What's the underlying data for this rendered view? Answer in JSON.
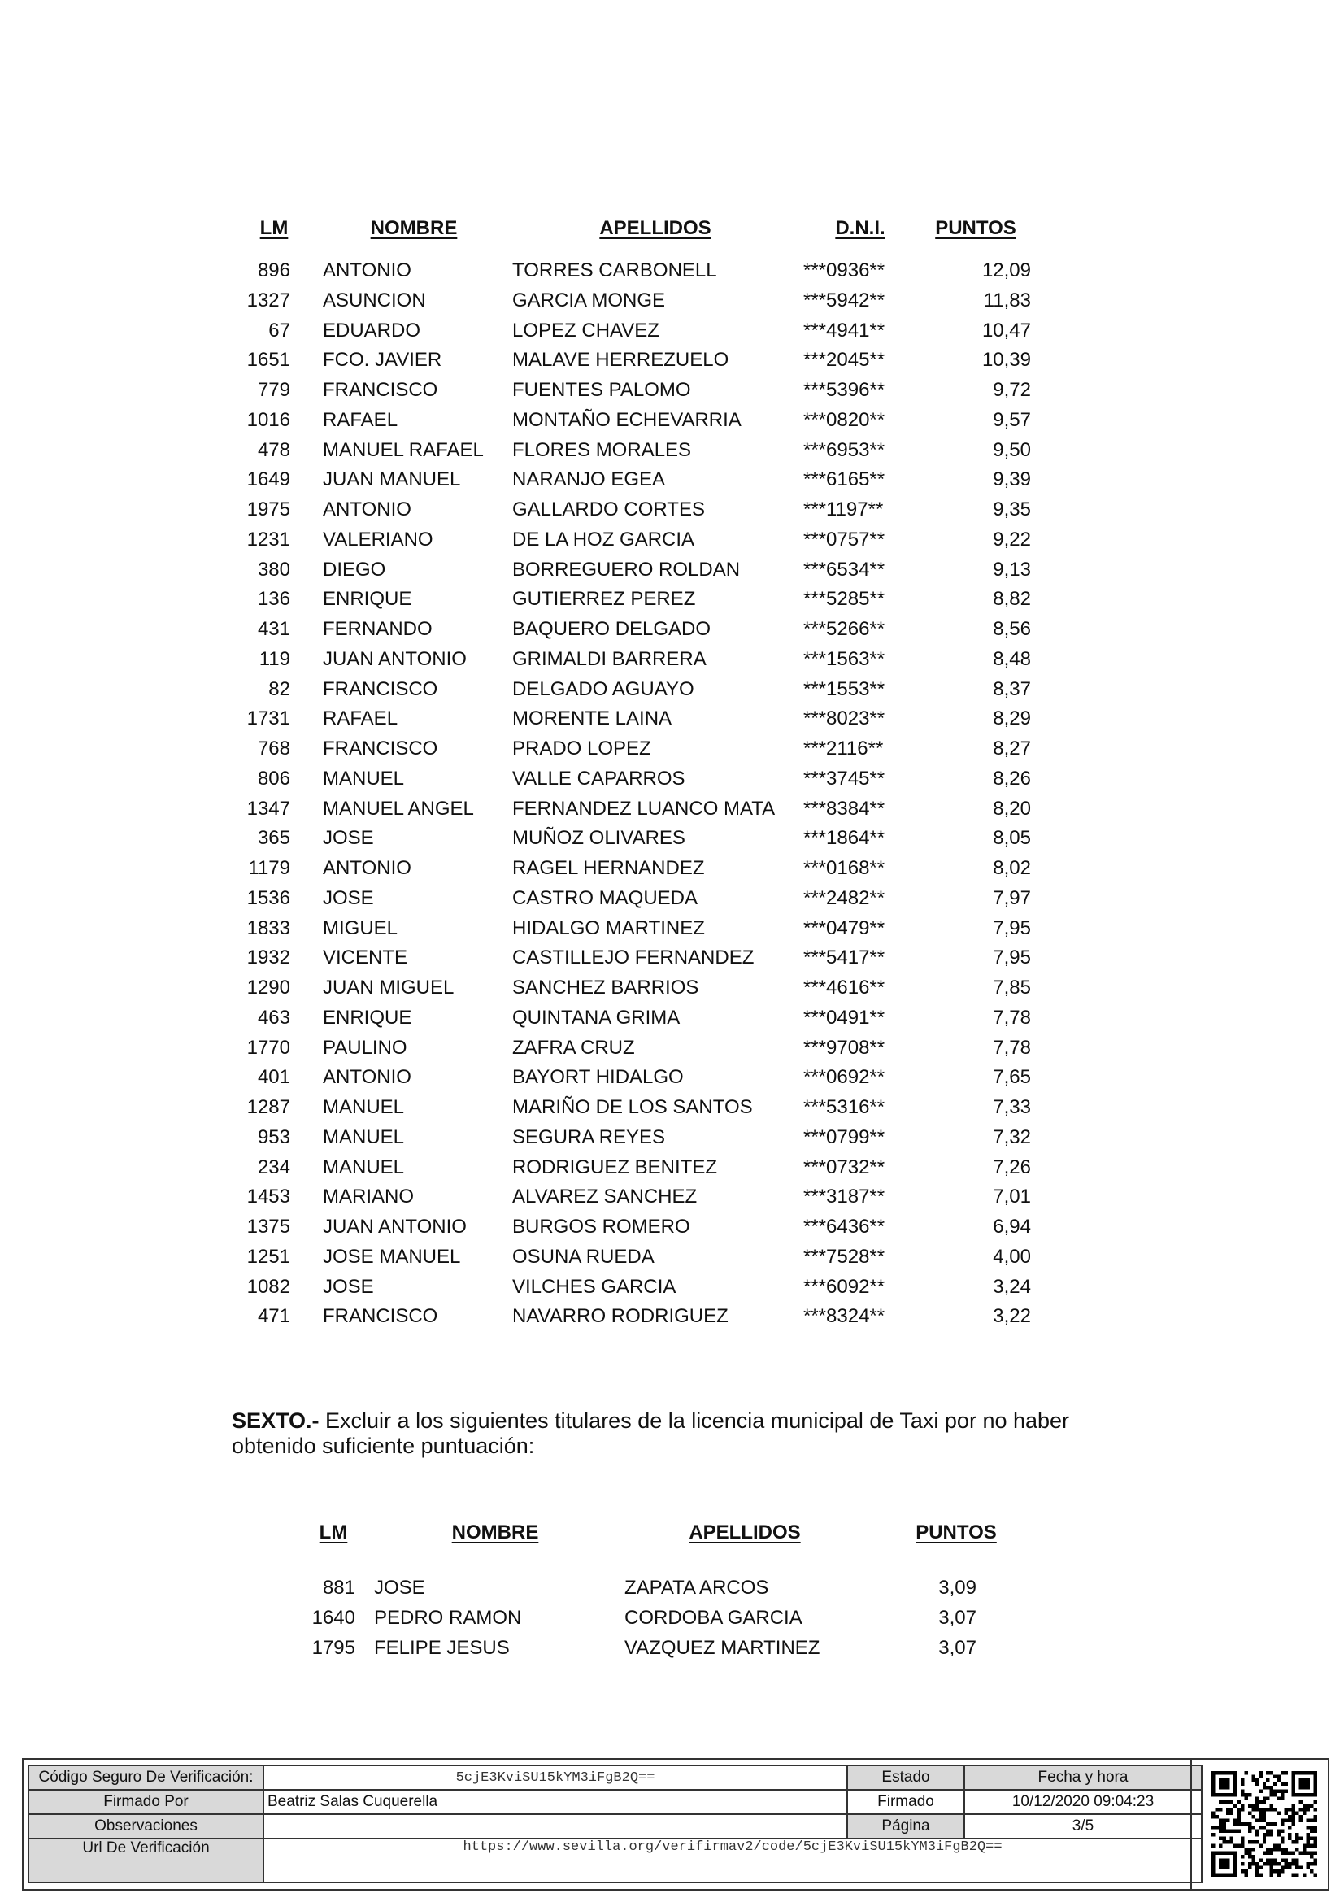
{
  "table1": {
    "headers": {
      "lm": "LM",
      "nombre": "NOMBRE",
      "apellidos": "APELLIDOS",
      "dni": "D.N.I.",
      "puntos": "PUNTOS"
    },
    "rows": [
      [
        "896",
        "ANTONIO",
        "TORRES CARBONELL",
        "***0936**",
        "12,09"
      ],
      [
        "1327",
        "ASUNCION",
        "GARCIA MONGE",
        "***5942**",
        "11,83"
      ],
      [
        "67",
        "EDUARDO",
        "LOPEZ CHAVEZ",
        "***4941**",
        "10,47"
      ],
      [
        "1651",
        "FCO. JAVIER",
        "MALAVE HERREZUELO",
        "***2045**",
        "10,39"
      ],
      [
        "779",
        "FRANCISCO",
        "FUENTES PALOMO",
        "***5396**",
        "9,72"
      ],
      [
        "1016",
        "RAFAEL",
        "MONTAÑO ECHEVARRIA",
        "***0820**",
        "9,57"
      ],
      [
        "478",
        "MANUEL RAFAEL",
        "FLORES MORALES",
        "***6953**",
        "9,50"
      ],
      [
        "1649",
        "JUAN MANUEL",
        "NARANJO EGEA",
        "***6165**",
        "9,39"
      ],
      [
        "1975",
        "ANTONIO",
        "GALLARDO CORTES",
        "***1197**",
        "9,35"
      ],
      [
        "1231",
        "VALERIANO",
        "DE LA HOZ GARCIA",
        "***0757**",
        "9,22"
      ],
      [
        "380",
        "DIEGO",
        "BORREGUERO ROLDAN",
        "***6534**",
        "9,13"
      ],
      [
        "136",
        "ENRIQUE",
        "GUTIERREZ PEREZ",
        "***5285**",
        "8,82"
      ],
      [
        "431",
        "FERNANDO",
        "BAQUERO DELGADO",
        "***5266**",
        "8,56"
      ],
      [
        "119",
        "JUAN ANTONIO",
        "GRIMALDI BARRERA",
        "***1563**",
        "8,48"
      ],
      [
        "82",
        "FRANCISCO",
        "DELGADO AGUAYO",
        "***1553**",
        "8,37"
      ],
      [
        "1731",
        "RAFAEL",
        "MORENTE LAINA",
        "***8023**",
        "8,29"
      ],
      [
        "768",
        "FRANCISCO",
        "PRADO LOPEZ",
        "***2116**",
        "8,27"
      ],
      [
        "806",
        "MANUEL",
        "VALLE CAPARROS",
        "***3745**",
        "8,26"
      ],
      [
        "1347",
        "MANUEL ANGEL",
        "FERNANDEZ LUANCO MATA",
        "***8384**",
        "8,20"
      ],
      [
        "365",
        "JOSE",
        "MUÑOZ OLIVARES",
        "***1864**",
        "8,05"
      ],
      [
        "1179",
        "ANTONIO",
        "RAGEL HERNANDEZ",
        "***0168**",
        "8,02"
      ],
      [
        "1536",
        "JOSE",
        "CASTRO MAQUEDA",
        "***2482**",
        "7,97"
      ],
      [
        "1833",
        "MIGUEL",
        "HIDALGO MARTINEZ",
        "***0479**",
        "7,95"
      ],
      [
        "1932",
        "VICENTE",
        "CASTILLEJO FERNANDEZ",
        "***5417**",
        "7,95"
      ],
      [
        "1290",
        "JUAN MIGUEL",
        "SANCHEZ BARRIOS",
        "***4616**",
        "7,85"
      ],
      [
        "463",
        "ENRIQUE",
        "QUINTANA GRIMA",
        "***0491**",
        "7,78"
      ],
      [
        "1770",
        "PAULINO",
        "ZAFRA CRUZ",
        "***9708**",
        "7,78"
      ],
      [
        "401",
        "ANTONIO",
        "BAYORT HIDALGO",
        "***0692**",
        "7,65"
      ],
      [
        "1287",
        "MANUEL",
        "MARIÑO DE LOS SANTOS",
        "***5316**",
        "7,33"
      ],
      [
        "953",
        "MANUEL",
        "SEGURA REYES",
        "***0799**",
        "7,32"
      ],
      [
        "234",
        "MANUEL",
        "RODRIGUEZ BENITEZ",
        "***0732**",
        "7,26"
      ],
      [
        "1453",
        "MARIANO",
        "ALVAREZ SANCHEZ",
        "***3187**",
        "7,01"
      ],
      [
        "1375",
        "JUAN ANTONIO",
        "BURGOS ROMERO",
        "***6436**",
        "6,94"
      ],
      [
        "1251",
        "JOSE MANUEL",
        "OSUNA RUEDA",
        "***7528**",
        "4,00"
      ],
      [
        "1082",
        "JOSE",
        "VILCHES GARCIA",
        "***6092**",
        "3,24"
      ],
      [
        "471",
        "FRANCISCO",
        "NAVARRO RODRIGUEZ",
        "***8324**",
        "3,22"
      ]
    ]
  },
  "sexto": {
    "label": "SEXTO.-",
    "text": " Excluir a los siguientes titulares de la licencia municipal de Taxi por no haber obtenido suficiente puntuación:"
  },
  "table2": {
    "headers": {
      "lm": "LM",
      "nombre": "NOMBRE",
      "apellidos": "APELLIDOS",
      "puntos": "PUNTOS"
    },
    "rows": [
      [
        "881",
        "JOSE",
        "ZAPATA ARCOS",
        "3,09"
      ],
      [
        "1640",
        "PEDRO RAMON",
        "CORDOBA GARCIA",
        "3,07"
      ],
      [
        "1795",
        "FELIPE JESUS",
        "VAZQUEZ MARTINEZ",
        "3,07"
      ]
    ]
  },
  "footer": {
    "csv_label": "Código Seguro De Verificación:",
    "csv_value": "5cjE3KviSU15kYM3iFgB2Q==",
    "estado_label": "Estado",
    "fecha_label": "Fecha y hora",
    "firmado_por_label": "Firmado Por",
    "firmado_por_value": "Beatriz Salas Cuquerella",
    "estado_value": "Firmado",
    "fecha_value": "10/12/2020 09:04:23",
    "observaciones_label": "Observaciones",
    "observaciones_value": "",
    "pagina_label": "Página",
    "pagina_value": "3/5",
    "url_label": "Url De Verificación",
    "url_value": "https://www.sevilla.org/verifirmav2/code/5cjE3KviSU15kYM3iFgB2Q=="
  }
}
